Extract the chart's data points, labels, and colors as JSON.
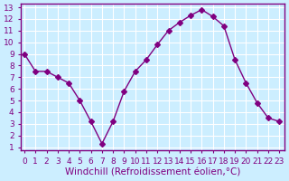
{
  "x": [
    0,
    1,
    2,
    3,
    4,
    5,
    6,
    7,
    8,
    9,
    10,
    11,
    12,
    13,
    14,
    15,
    16,
    17,
    18,
    19,
    20,
    21,
    22,
    23
  ],
  "y": [
    9,
    7.5,
    7.5,
    7,
    6.5,
    5,
    3.2,
    1.3,
    3.2,
    5.8,
    7.5,
    8.5,
    9.8,
    11.0,
    11.7,
    12.3,
    12.8,
    12.2,
    11.4,
    8.5,
    6.5,
    4.8,
    3.5,
    3.2
  ],
  "line_color": "#800080",
  "marker": "D",
  "marker_size": 3,
  "bg_color": "#cceeff",
  "grid_color": "#ffffff",
  "xlabel": "Windchill (Refroidissement éolien,°C)",
  "ylim": [
    1,
    13
  ],
  "xlim_min": -0.3,
  "xlim_max": 23.5,
  "yticks": [
    1,
    2,
    3,
    4,
    5,
    6,
    7,
    8,
    9,
    10,
    11,
    12,
    13
  ],
  "xticks": [
    0,
    1,
    2,
    3,
    4,
    5,
    6,
    7,
    8,
    9,
    10,
    11,
    12,
    13,
    14,
    15,
    16,
    17,
    18,
    19,
    20,
    21,
    22,
    23
  ],
  "tick_label_fontsize": 6.5,
  "xlabel_fontsize": 7.5,
  "axis_label_color": "#800080",
  "tick_color": "#800080",
  "spine_color": "#800080"
}
